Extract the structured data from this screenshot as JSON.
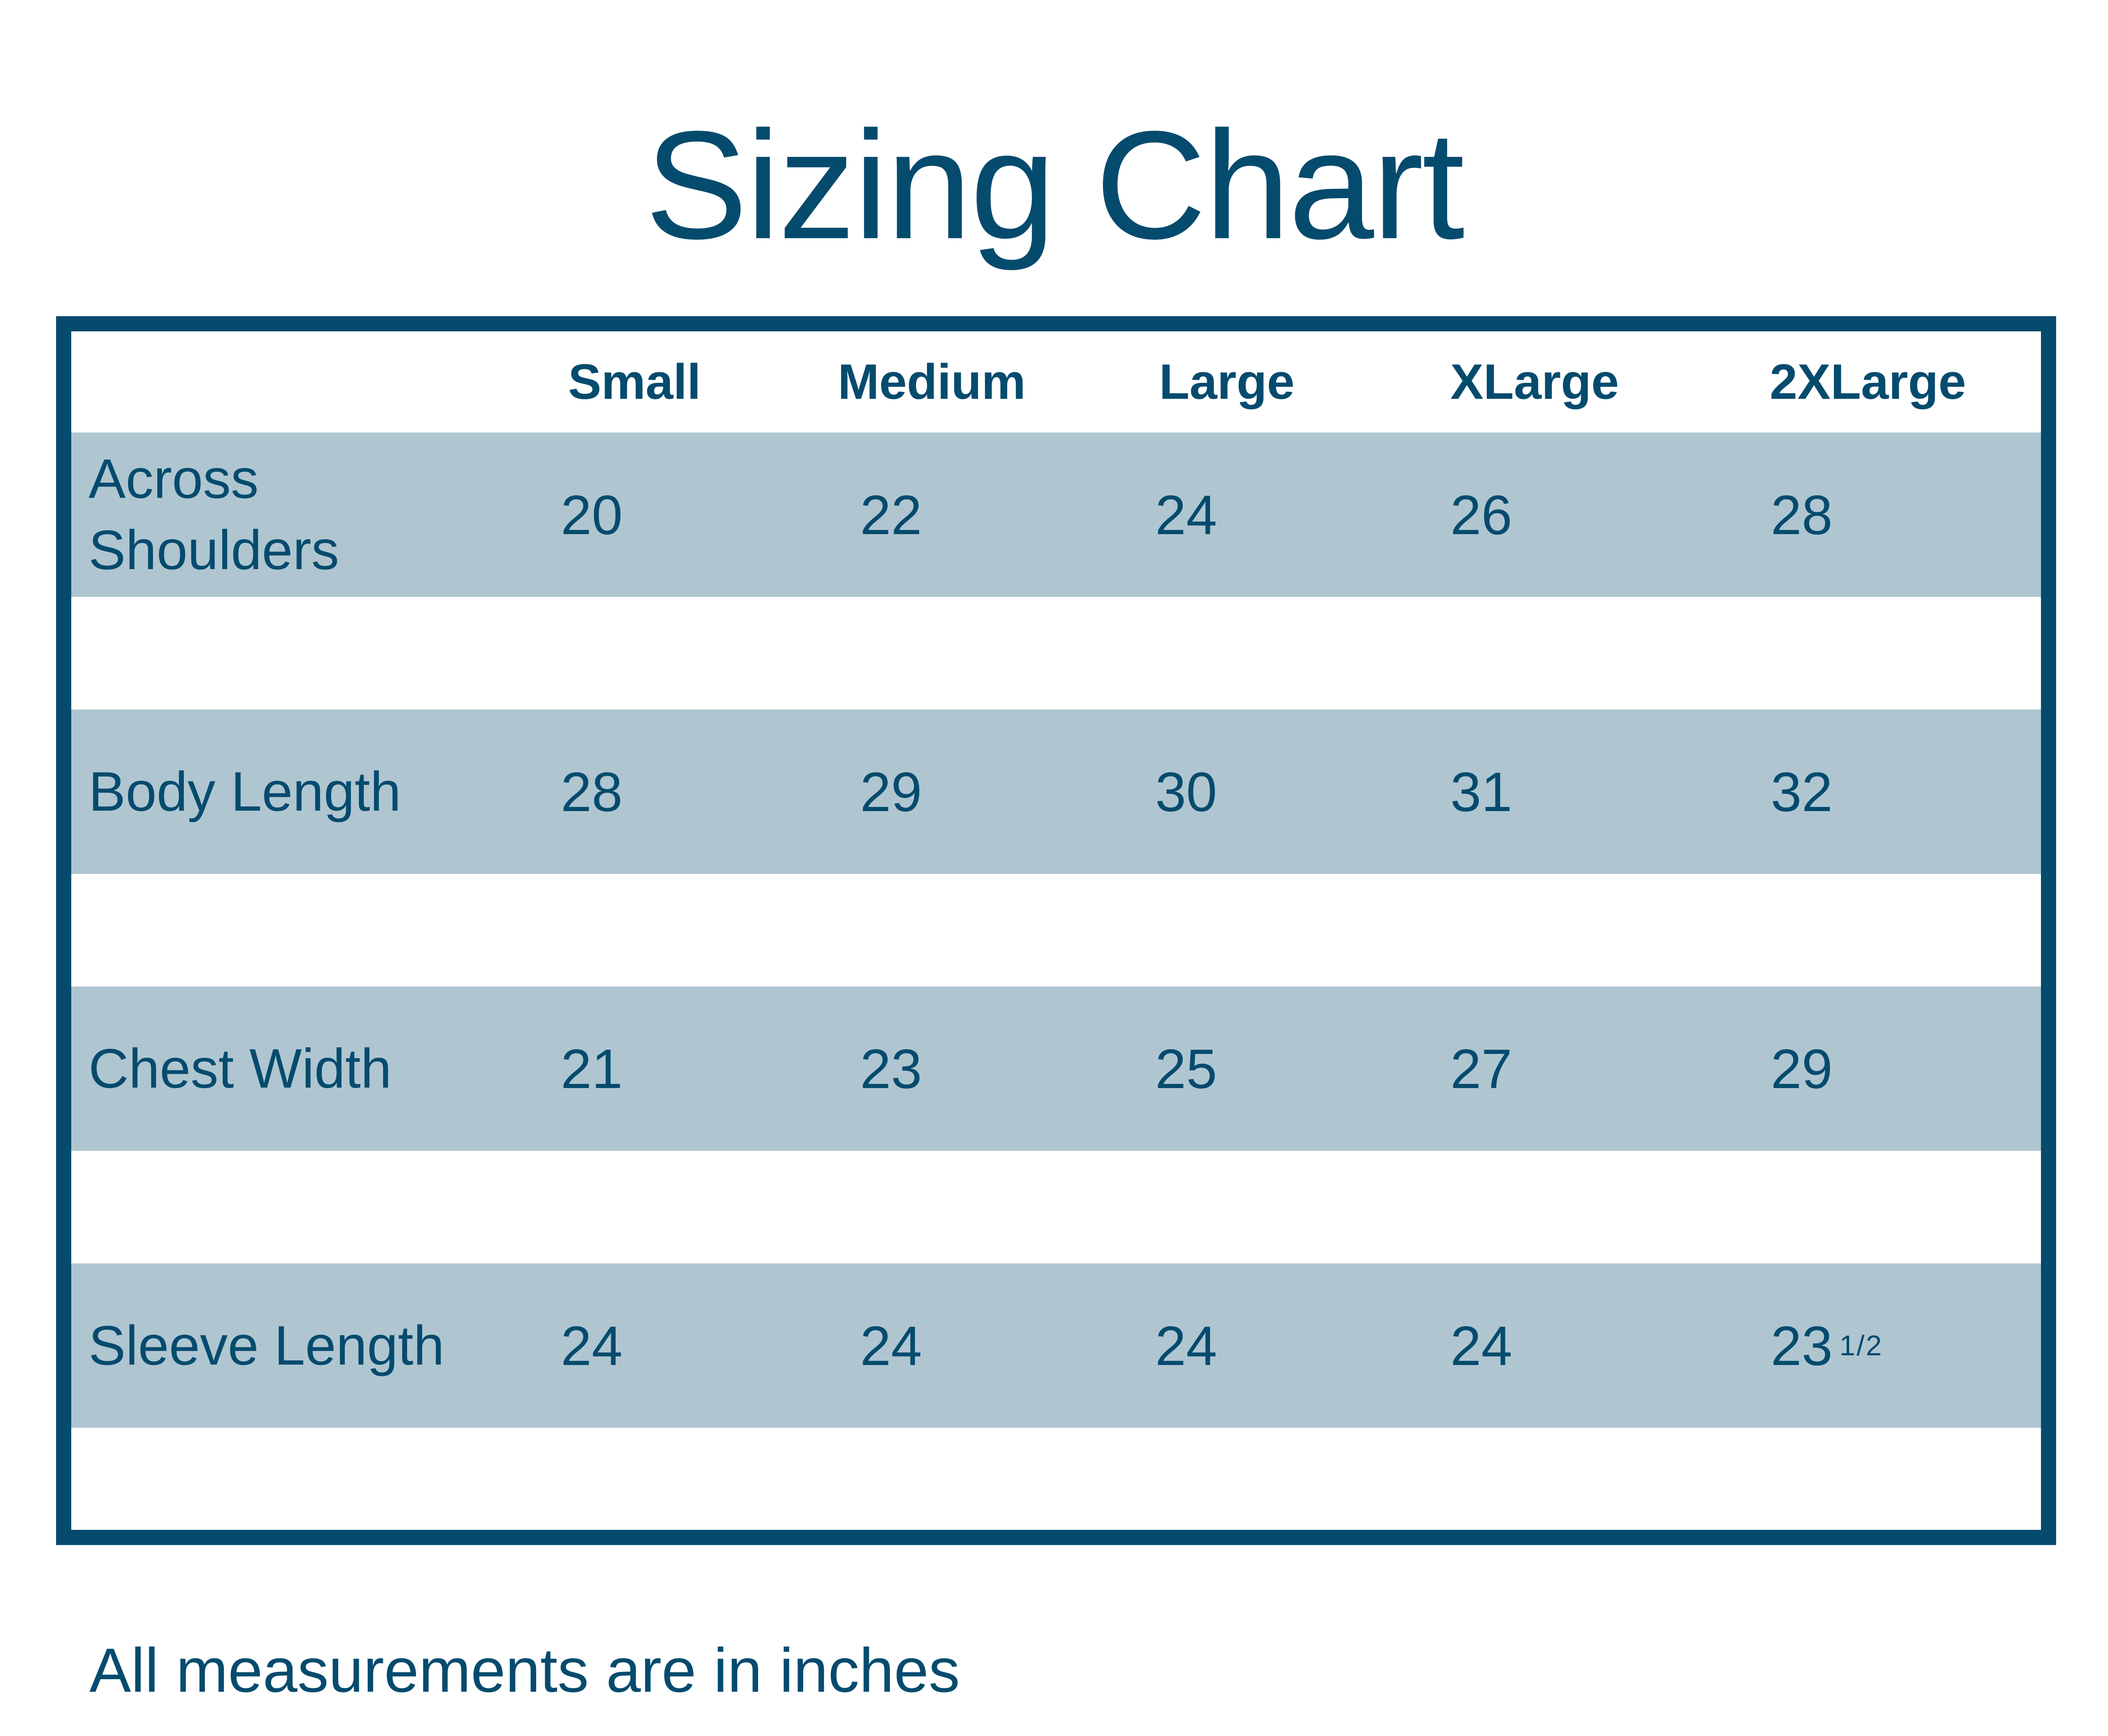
{
  "colors": {
    "dark_blue": "#054B6E",
    "band_blue": "#AFC6D1"
  },
  "chart_data": {
    "type": "table",
    "title": "Sizing Chart",
    "columns": [
      "Small",
      "Medium",
      "Large",
      "XLarge",
      "2XLarge"
    ],
    "rows": [
      {
        "label": "Across Shoulders",
        "values": [
          "20",
          "22",
          "24",
          "26",
          "28"
        ]
      },
      {
        "label": "Body Length",
        "values": [
          "28",
          "29",
          "30",
          "31",
          "32"
        ]
      },
      {
        "label": "Chest Width",
        "values": [
          "21",
          "23",
          "25",
          "27",
          "29"
        ]
      },
      {
        "label": "Sleeve Length",
        "values": [
          "24",
          "24",
          "24",
          "24",
          "23 1/2"
        ]
      }
    ],
    "footnote": "All measurements are in inches",
    "units": "inches"
  },
  "display": {
    "sleeve_2xl_base": "23",
    "sleeve_2xl_sup": "1/2"
  }
}
